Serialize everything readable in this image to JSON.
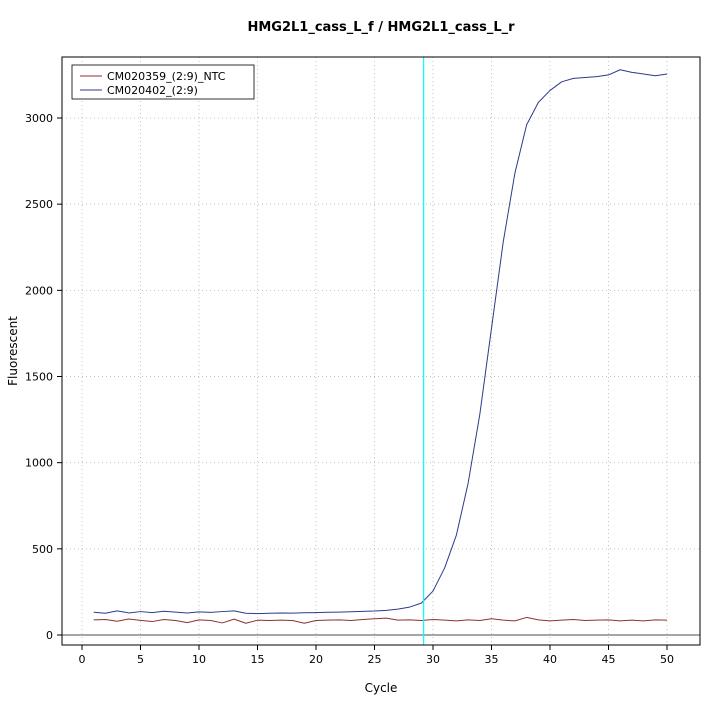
{
  "window": {
    "background": "#ffffff"
  },
  "chart_data": {
    "type": "line",
    "title": "HMG2L1_cass_L_f / HMG2L1_cass_L_r",
    "xlabel": "Cycle",
    "ylabel": "Fluorescent",
    "xlim": [
      -1.7,
      52.8
    ],
    "ylim": [
      -58,
      3354
    ],
    "xticks": [
      0,
      5,
      10,
      15,
      20,
      25,
      30,
      35,
      40,
      45,
      50
    ],
    "yticks": [
      0,
      500,
      1000,
      1500,
      2000,
      2500,
      3000
    ],
    "grid": true,
    "grid_color": "#c3c3c3",
    "legend_position": "top-left",
    "threshold_vline": {
      "x": 29.2,
      "color": "#00FFFF"
    },
    "baseline_hline": {
      "y": 0,
      "color": "#4d4d4d"
    },
    "x": [
      1,
      2,
      3,
      4,
      5,
      6,
      7,
      8,
      9,
      10,
      11,
      12,
      13,
      14,
      15,
      16,
      17,
      18,
      19,
      20,
      21,
      22,
      23,
      24,
      25,
      26,
      27,
      28,
      29,
      30,
      31,
      32,
      33,
      34,
      35,
      36,
      37,
      38,
      39,
      40,
      41,
      42,
      43,
      44,
      45,
      46,
      47,
      48,
      49,
      50
    ],
    "series": [
      {
        "name": "CM020359_(2:9)_NTC",
        "color": "#8f3131",
        "values": [
          88,
          90,
          80,
          93,
          85,
          78,
          90,
          84,
          72,
          88,
          84,
          70,
          92,
          68,
          86,
          84,
          86,
          84,
          68,
          84,
          86,
          88,
          84,
          90,
          94,
          98,
          86,
          88,
          84,
          90,
          86,
          82,
          88,
          84,
          94,
          86,
          82,
          102,
          88,
          82,
          86,
          90,
          84,
          86,
          88,
          82,
          86,
          82,
          88,
          86
        ]
      },
      {
        "name": "CM020402_(2:9)",
        "color": "#2d3a8c",
        "values": [
          132,
          126,
          140,
          128,
          136,
          130,
          138,
          133,
          128,
          134,
          131,
          136,
          140,
          126,
          124,
          126,
          128,
          127,
          129,
          130,
          132,
          133,
          135,
          137,
          139,
          143,
          150,
          162,
          185,
          255,
          390,
          580,
          880,
          1280,
          1780,
          2280,
          2680,
          2960,
          3090,
          3160,
          3210,
          3230,
          3235,
          3240,
          3250,
          3280,
          3265,
          3255,
          3245,
          3255
        ]
      }
    ]
  }
}
